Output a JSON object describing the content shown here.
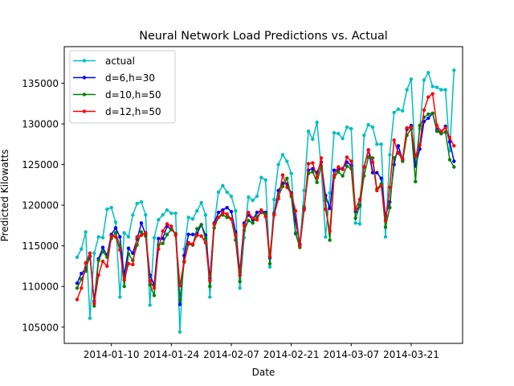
{
  "chart_data": {
    "type": "line",
    "title": "Neural Network Load Predictions vs. Actual",
    "xlabel": "Date",
    "ylabel": "Predicted Kilowatts",
    "x_start": "2014-01-02",
    "xlim": [
      "2013-12-30",
      "2014-04-02"
    ],
    "ylim": [
      103000,
      139500
    ],
    "y_ticks": [
      105000,
      110000,
      115000,
      120000,
      125000,
      130000,
      135000
    ],
    "x_ticks": [
      "2014-01-10",
      "2014-01-24",
      "2014-02-07",
      "2014-02-21",
      "2014-03-07",
      "2014-03-21"
    ],
    "grid": false,
    "legend_position": "top-left",
    "series": [
      {
        "name": "actual",
        "color": "#00bfbf",
        "values": [
          113600,
          114600,
          116700,
          106100,
          114100,
          116100,
          116000,
          119500,
          119700,
          117900,
          108700,
          116600,
          116100,
          118800,
          120200,
          120400,
          118800,
          107700,
          116000,
          118200,
          118800,
          119400,
          119000,
          119000,
          104400,
          114600,
          118500,
          118300,
          119300,
          120300,
          118800,
          108700,
          117700,
          121600,
          122400,
          121600,
          121100,
          119300,
          109800,
          116000,
          121000,
          120600,
          121100,
          123400,
          123100,
          112400,
          120700,
          125000,
          126200,
          125400,
          123900,
          116600,
          115100,
          121800,
          129100,
          128100,
          130200,
          124500,
          116100,
          121500,
          128900,
          128800,
          128200,
          129600,
          129400,
          117800,
          117700,
          128600,
          129900,
          129600,
          127500,
          127500,
          116100,
          126200,
          131400,
          131800,
          131600,
          134200,
          135500,
          125200,
          129400,
          135400,
          136300,
          134600,
          134500,
          134200,
          134200,
          126700,
          136600
        ]
      },
      {
        "name": "d=6,h=30",
        "color": "#0000ff",
        "values": [
          110400,
          111600,
          112200,
          113700,
          108200,
          113400,
          114800,
          113800,
          116400,
          117200,
          116100,
          111300,
          114700,
          114100,
          115800,
          117800,
          116400,
          111400,
          110200,
          115900,
          115900,
          117400,
          117000,
          116500,
          107800,
          113800,
          116400,
          116400,
          116500,
          117600,
          116300,
          111000,
          117800,
          119100,
          119400,
          119700,
          119200,
          116700,
          111800,
          117800,
          118800,
          118200,
          119100,
          119300,
          119100,
          113500,
          119000,
          121800,
          122700,
          122600,
          121500,
          118100,
          115200,
          119600,
          124300,
          124500,
          124000,
          125300,
          121200,
          119600,
          124300,
          124400,
          124500,
          125300,
          124900,
          119200,
          120000,
          124700,
          126800,
          124000,
          124000,
          123300,
          118700,
          120400,
          125000,
          127300,
          125500,
          129300,
          129800,
          124800,
          126900,
          130300,
          130700,
          131300,
          129300,
          128900,
          129700,
          127800,
          125400
        ]
      },
      {
        "name": "d=10,h=50",
        "color": "#008000",
        "values": [
          109800,
          110900,
          111900,
          114100,
          107600,
          113200,
          114300,
          113600,
          115900,
          116600,
          115000,
          110000,
          114000,
          113200,
          115100,
          116700,
          116200,
          110200,
          108900,
          115100,
          115300,
          116400,
          117000,
          116500,
          108300,
          113000,
          115200,
          115100,
          117100,
          117600,
          115900,
          110000,
          117200,
          118500,
          118800,
          118500,
          118300,
          115700,
          110600,
          116900,
          118100,
          117800,
          118600,
          119100,
          118900,
          112800,
          118900,
          121100,
          122300,
          123300,
          121100,
          116500,
          114800,
          119800,
          123900,
          124100,
          122800,
          124800,
          120600,
          115700,
          123400,
          124100,
          123600,
          124800,
          124500,
          118400,
          119900,
          123600,
          125900,
          125800,
          122000,
          122600,
          117300,
          119700,
          125800,
          126500,
          125400,
          128600,
          129400,
          122900,
          129800,
          130800,
          131200,
          131300,
          129100,
          128800,
          129000,
          125600,
          124700
        ]
      },
      {
        "name": "d=12,h=50",
        "color": "#ff0000",
        "values": [
          108400,
          109800,
          112900,
          114100,
          107900,
          111400,
          113100,
          112500,
          116200,
          116100,
          114500,
          110800,
          112800,
          112700,
          116100,
          116300,
          116600,
          110700,
          109800,
          114600,
          116800,
          117700,
          117400,
          116300,
          110100,
          113100,
          115400,
          115200,
          116300,
          116200,
          115400,
          110700,
          117700,
          118500,
          119100,
          118900,
          118300,
          116300,
          111400,
          117500,
          119100,
          118400,
          118200,
          119400,
          118600,
          113700,
          118800,
          120800,
          123700,
          122200,
          121400,
          119300,
          115000,
          119400,
          125100,
          125200,
          123400,
          125800,
          119500,
          116800,
          123600,
          124700,
          124400,
          125900,
          125400,
          119500,
          120700,
          124700,
          126800,
          125300,
          121800,
          122400,
          118100,
          122200,
          128000,
          126400,
          125700,
          129500,
          129600,
          126000,
          127400,
          131700,
          133300,
          133700,
          129800,
          129100,
          129500,
          128300,
          127300
        ]
      }
    ]
  }
}
